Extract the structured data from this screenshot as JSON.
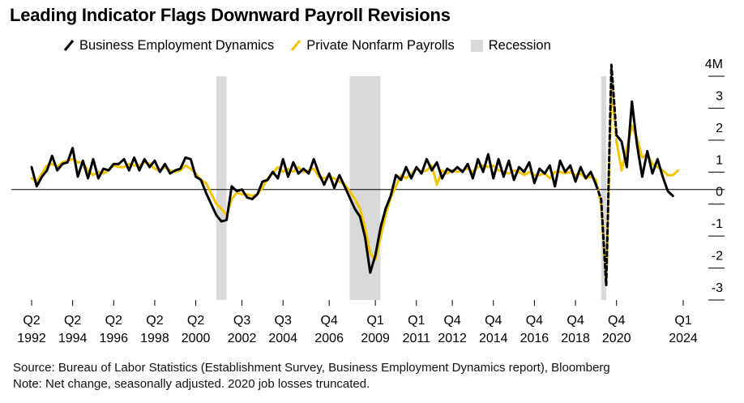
{
  "title": "Leading Indicator Flags Downward Payroll Revisions",
  "legend": {
    "bed": "Business Employment Dynamics",
    "nfp": "Private Nonfarm Payrolls",
    "recession": "Recession"
  },
  "colors": {
    "bed": "#000000",
    "nfp": "#f5c400",
    "recession": "#d9d9d9",
    "zero": "#000000"
  },
  "source": "Source: Bureau of Labor Statistics (Establishment Survey, Business Employment Dynamics report), Bloomberg",
  "note": "Note: Net change, seasonally adjusted. 2020 job losses truncated.",
  "chart_data": {
    "type": "line",
    "title": "Leading Indicator Flags Downward Payroll Revisions",
    "y_unit": "M",
    "ylim": [
      -3,
      4
    ],
    "yticks": [
      {
        "value": 4,
        "label": "4M"
      },
      {
        "value": 3,
        "label": "3"
      },
      {
        "value": 2,
        "label": "2"
      },
      {
        "value": 1,
        "label": "1"
      },
      {
        "value": 0,
        "label": "0"
      },
      {
        "value": -1,
        "label": "-1"
      },
      {
        "value": -2,
        "label": "-2"
      },
      {
        "value": -3,
        "label": "-3"
      }
    ],
    "xticks": [
      {
        "q": "1992.25",
        "line1": "Q2",
        "line2": "1992"
      },
      {
        "q": "1994.25",
        "line1": "Q2",
        "line2": "1994"
      },
      {
        "q": "1996.25",
        "line1": "Q2",
        "line2": "1996"
      },
      {
        "q": "1998.25",
        "line1": "Q2",
        "line2": "1998"
      },
      {
        "q": "2000.25",
        "line1": "Q2",
        "line2": "2000"
      },
      {
        "q": "2002.5",
        "line1": "Q3",
        "line2": "2002"
      },
      {
        "q": "2004.5",
        "line1": "Q3",
        "line2": "2004"
      },
      {
        "q": "2006.75",
        "line1": "Q4",
        "line2": "2006"
      },
      {
        "q": "2009",
        "line1": "Q1",
        "line2": "2009"
      },
      {
        "q": "2011",
        "line1": "Q1",
        "line2": "2011"
      },
      {
        "q": "2012.75",
        "line1": "Q4",
        "line2": "2012"
      },
      {
        "q": "2014.75",
        "line1": "Q4",
        "line2": "2014"
      },
      {
        "q": "2016.75",
        "line1": "Q4",
        "line2": "2016"
      },
      {
        "q": "2018.75",
        "line1": "Q4",
        "line2": "2018"
      },
      {
        "q": "2020.75",
        "line1": "Q4",
        "line2": "2020"
      },
      {
        "q": "2024",
        "line1": "Q1",
        "line2": "2024"
      }
    ],
    "recessions": [
      [
        2001.25,
        2001.75
      ],
      [
        2007.75,
        2009.25
      ],
      [
        2020.0,
        2020.25
      ]
    ],
    "series": [
      {
        "name": "Business Employment Dynamics",
        "key": "bed",
        "points": [
          [
            1992.25,
            0.7
          ],
          [
            1992.5,
            0.1
          ],
          [
            1992.75,
            0.4
          ],
          [
            1993.0,
            0.6
          ],
          [
            1993.25,
            1.05
          ],
          [
            1993.5,
            0.6
          ],
          [
            1993.75,
            0.8
          ],
          [
            1994.0,
            0.85
          ],
          [
            1994.25,
            1.3
          ],
          [
            1994.5,
            0.4
          ],
          [
            1994.75,
            0.9
          ],
          [
            1995.0,
            0.35
          ],
          [
            1995.25,
            0.95
          ],
          [
            1995.5,
            0.35
          ],
          [
            1995.75,
            0.65
          ],
          [
            1996.0,
            0.6
          ],
          [
            1996.25,
            0.8
          ],
          [
            1996.5,
            0.8
          ],
          [
            1996.75,
            0.95
          ],
          [
            1997.0,
            0.6
          ],
          [
            1997.25,
            1.0
          ],
          [
            1997.5,
            0.6
          ],
          [
            1997.75,
            0.95
          ],
          [
            1998.0,
            0.7
          ],
          [
            1998.25,
            0.9
          ],
          [
            1998.5,
            0.55
          ],
          [
            1998.75,
            0.8
          ],
          [
            1999.0,
            0.5
          ],
          [
            1999.25,
            0.6
          ],
          [
            1999.5,
            0.65
          ],
          [
            1999.75,
            1.0
          ],
          [
            2000.0,
            0.95
          ],
          [
            2000.25,
            0.4
          ],
          [
            2000.5,
            0.3
          ],
          [
            2000.75,
            -0.1
          ],
          [
            2001.25,
            -0.8
          ],
          [
            2001.5,
            -1.0
          ],
          [
            2001.75,
            -0.95
          ],
          [
            2002.0,
            0.1
          ],
          [
            2002.25,
            -0.05
          ],
          [
            2002.5,
            0.0
          ],
          [
            2002.75,
            -0.25
          ],
          [
            2003.0,
            -0.3
          ],
          [
            2003.25,
            -0.15
          ],
          [
            2003.5,
            0.25
          ],
          [
            2003.75,
            0.3
          ],
          [
            2004.0,
            0.55
          ],
          [
            2004.25,
            0.35
          ],
          [
            2004.5,
            0.95
          ],
          [
            2004.75,
            0.4
          ],
          [
            2005.0,
            0.85
          ],
          [
            2005.25,
            0.5
          ],
          [
            2005.5,
            0.65
          ],
          [
            2005.75,
            0.5
          ],
          [
            2006.0,
            0.95
          ],
          [
            2006.25,
            0.5
          ],
          [
            2006.5,
            0.15
          ],
          [
            2006.75,
            0.5
          ],
          [
            2007.0,
            0.05
          ],
          [
            2007.25,
            0.45
          ],
          [
            2007.5,
            0.1
          ],
          [
            2007.75,
            -0.25
          ],
          [
            2008.0,
            -0.6
          ],
          [
            2008.25,
            -0.85
          ],
          [
            2008.5,
            -1.5
          ],
          [
            2008.75,
            -2.6
          ],
          [
            2009.0,
            -2.05
          ],
          [
            2009.25,
            -1.2
          ],
          [
            2009.5,
            -0.6
          ],
          [
            2009.75,
            -0.2
          ],
          [
            2010.0,
            0.45
          ],
          [
            2010.25,
            0.3
          ],
          [
            2010.5,
            0.7
          ],
          [
            2010.75,
            0.35
          ],
          [
            2011.0,
            0.7
          ],
          [
            2011.25,
            0.5
          ],
          [
            2011.5,
            0.95
          ],
          [
            2011.75,
            0.6
          ],
          [
            2012.0,
            0.85
          ],
          [
            2012.25,
            0.35
          ],
          [
            2012.5,
            0.65
          ],
          [
            2012.75,
            0.55
          ],
          [
            2013.0,
            0.7
          ],
          [
            2013.25,
            0.55
          ],
          [
            2013.5,
            0.8
          ],
          [
            2013.75,
            0.35
          ],
          [
            2014.0,
            0.95
          ],
          [
            2014.25,
            0.55
          ],
          [
            2014.5,
            1.1
          ],
          [
            2014.75,
            0.35
          ],
          [
            2015.0,
            0.95
          ],
          [
            2015.25,
            0.4
          ],
          [
            2015.5,
            0.9
          ],
          [
            2015.75,
            0.3
          ],
          [
            2016.0,
            0.7
          ],
          [
            2016.25,
            0.55
          ],
          [
            2016.5,
            0.85
          ],
          [
            2016.75,
            0.2
          ],
          [
            2017.0,
            0.65
          ],
          [
            2017.25,
            0.5
          ],
          [
            2017.5,
            0.75
          ],
          [
            2017.75,
            0.1
          ],
          [
            2018.0,
            0.9
          ],
          [
            2018.25,
            0.55
          ],
          [
            2018.5,
            0.75
          ],
          [
            2018.75,
            0.25
          ],
          [
            2019.0,
            0.7
          ],
          [
            2019.25,
            0.35
          ],
          [
            2019.5,
            0.55
          ],
          [
            2019.75,
            0.15
          ]
        ],
        "dashed_points": [
          [
            2019.75,
            0.15
          ],
          [
            2020.0,
            -0.3
          ],
          [
            2020.25,
            -3.0
          ],
          [
            2020.5,
            3.9
          ],
          [
            2020.75,
            1.7
          ]
        ],
        "points_after": [
          [
            2020.75,
            1.7
          ],
          [
            2021.0,
            1.5
          ],
          [
            2021.25,
            0.7
          ],
          [
            2021.5,
            2.75
          ],
          [
            2021.75,
            1.4
          ],
          [
            2022.0,
            0.4
          ],
          [
            2022.25,
            1.2
          ],
          [
            2022.5,
            0.5
          ],
          [
            2022.75,
            0.95
          ],
          [
            2023.0,
            0.4
          ],
          [
            2023.25,
            -0.05
          ],
          [
            2023.5,
            -0.2
          ]
        ]
      },
      {
        "name": "Private Nonfarm Payrolls",
        "key": "nfp",
        "points": [
          [
            1992.25,
            0.35
          ],
          [
            1992.5,
            0.25
          ],
          [
            1992.75,
            0.5
          ],
          [
            1993.0,
            0.75
          ],
          [
            1993.25,
            0.8
          ],
          [
            1993.5,
            0.7
          ],
          [
            1993.75,
            0.85
          ],
          [
            1994.0,
            0.9
          ],
          [
            1994.25,
            0.95
          ],
          [
            1994.5,
            0.85
          ],
          [
            1994.75,
            0.85
          ],
          [
            1995.0,
            0.6
          ],
          [
            1995.25,
            0.45
          ],
          [
            1995.5,
            0.55
          ],
          [
            1995.75,
            0.5
          ],
          [
            1996.0,
            0.6
          ],
          [
            1996.25,
            0.75
          ],
          [
            1996.5,
            0.7
          ],
          [
            1996.75,
            0.7
          ],
          [
            1997.0,
            0.8
          ],
          [
            1997.25,
            0.75
          ],
          [
            1997.5,
            0.75
          ],
          [
            1997.75,
            0.85
          ],
          [
            1998.0,
            0.8
          ],
          [
            1998.25,
            0.65
          ],
          [
            1998.5,
            0.6
          ],
          [
            1998.75,
            0.7
          ],
          [
            1999.0,
            0.6
          ],
          [
            1999.25,
            0.55
          ],
          [
            1999.5,
            0.6
          ],
          [
            1999.75,
            0.75
          ],
          [
            2000.0,
            0.65
          ],
          [
            2000.25,
            0.5
          ],
          [
            2000.5,
            0.3
          ],
          [
            2000.75,
            0.2
          ],
          [
            2001.25,
            -0.45
          ],
          [
            2001.5,
            -0.6
          ],
          [
            2001.75,
            -0.8
          ],
          [
            2002.0,
            -0.3
          ],
          [
            2002.25,
            -0.1
          ],
          [
            2002.5,
            -0.15
          ],
          [
            2002.75,
            -0.15
          ],
          [
            2003.0,
            -0.2
          ],
          [
            2003.25,
            -0.15
          ],
          [
            2003.5,
            0.05
          ],
          [
            2003.75,
            0.35
          ],
          [
            2004.0,
            0.5
          ],
          [
            2004.25,
            0.7
          ],
          [
            2004.5,
            0.55
          ],
          [
            2004.75,
            0.65
          ],
          [
            2005.0,
            0.55
          ],
          [
            2005.25,
            0.7
          ],
          [
            2005.5,
            0.55
          ],
          [
            2005.75,
            0.6
          ],
          [
            2006.0,
            0.65
          ],
          [
            2006.25,
            0.4
          ],
          [
            2006.5,
            0.35
          ],
          [
            2006.75,
            0.4
          ],
          [
            2007.0,
            0.35
          ],
          [
            2007.25,
            0.25
          ],
          [
            2007.5,
            0.15
          ],
          [
            2007.75,
            -0.05
          ],
          [
            2008.0,
            -0.3
          ],
          [
            2008.25,
            -0.6
          ],
          [
            2008.5,
            -1.2
          ],
          [
            2008.75,
            -2.0
          ],
          [
            2009.0,
            -2.2
          ],
          [
            2009.25,
            -1.5
          ],
          [
            2009.5,
            -0.8
          ],
          [
            2009.75,
            -0.25
          ],
          [
            2010.0,
            0.1
          ],
          [
            2010.25,
            0.45
          ],
          [
            2010.5,
            0.35
          ],
          [
            2010.75,
            0.5
          ],
          [
            2011.0,
            0.65
          ],
          [
            2011.25,
            0.55
          ],
          [
            2011.5,
            0.6
          ],
          [
            2011.75,
            0.75
          ],
          [
            2012.0,
            0.15
          ],
          [
            2012.25,
            0.6
          ],
          [
            2012.5,
            0.5
          ],
          [
            2012.75,
            0.6
          ],
          [
            2013.0,
            0.55
          ],
          [
            2013.25,
            0.6
          ],
          [
            2013.5,
            0.65
          ],
          [
            2013.75,
            0.55
          ],
          [
            2014.0,
            0.7
          ],
          [
            2014.25,
            0.75
          ],
          [
            2014.5,
            0.7
          ],
          [
            2014.75,
            0.75
          ],
          [
            2015.0,
            0.6
          ],
          [
            2015.25,
            0.55
          ],
          [
            2015.5,
            0.5
          ],
          [
            2015.75,
            0.6
          ],
          [
            2016.0,
            0.55
          ],
          [
            2016.25,
            0.45
          ],
          [
            2016.5,
            0.55
          ],
          [
            2016.75,
            0.45
          ],
          [
            2017.0,
            0.45
          ],
          [
            2017.25,
            0.5
          ],
          [
            2017.5,
            0.35
          ],
          [
            2017.75,
            0.55
          ],
          [
            2018.0,
            0.55
          ],
          [
            2018.25,
            0.5
          ],
          [
            2018.5,
            0.55
          ],
          [
            2018.75,
            0.45
          ],
          [
            2019.0,
            0.5
          ],
          [
            2019.25,
            0.35
          ],
          [
            2019.5,
            0.4
          ],
          [
            2019.75,
            0.3
          ]
        ],
        "dashed_points": [
          [
            2019.75,
            0.3
          ],
          [
            2020.0,
            -0.5
          ],
          [
            2020.25,
            -2.9
          ],
          [
            2020.5,
            3.2
          ],
          [
            2020.75,
            1.5
          ]
        ],
        "points_after": [
          [
            2020.75,
            1.5
          ],
          [
            2021.0,
            0.6
          ],
          [
            2021.25,
            1.3
          ],
          [
            2021.5,
            2.0
          ],
          [
            2021.75,
            1.6
          ],
          [
            2022.0,
            1.0
          ],
          [
            2022.25,
            1.1
          ],
          [
            2022.5,
            0.8
          ],
          [
            2022.75,
            0.7
          ],
          [
            2023.0,
            0.6
          ],
          [
            2023.25,
            0.45
          ],
          [
            2023.5,
            0.45
          ],
          [
            2023.75,
            0.6
          ]
        ]
      }
    ]
  }
}
